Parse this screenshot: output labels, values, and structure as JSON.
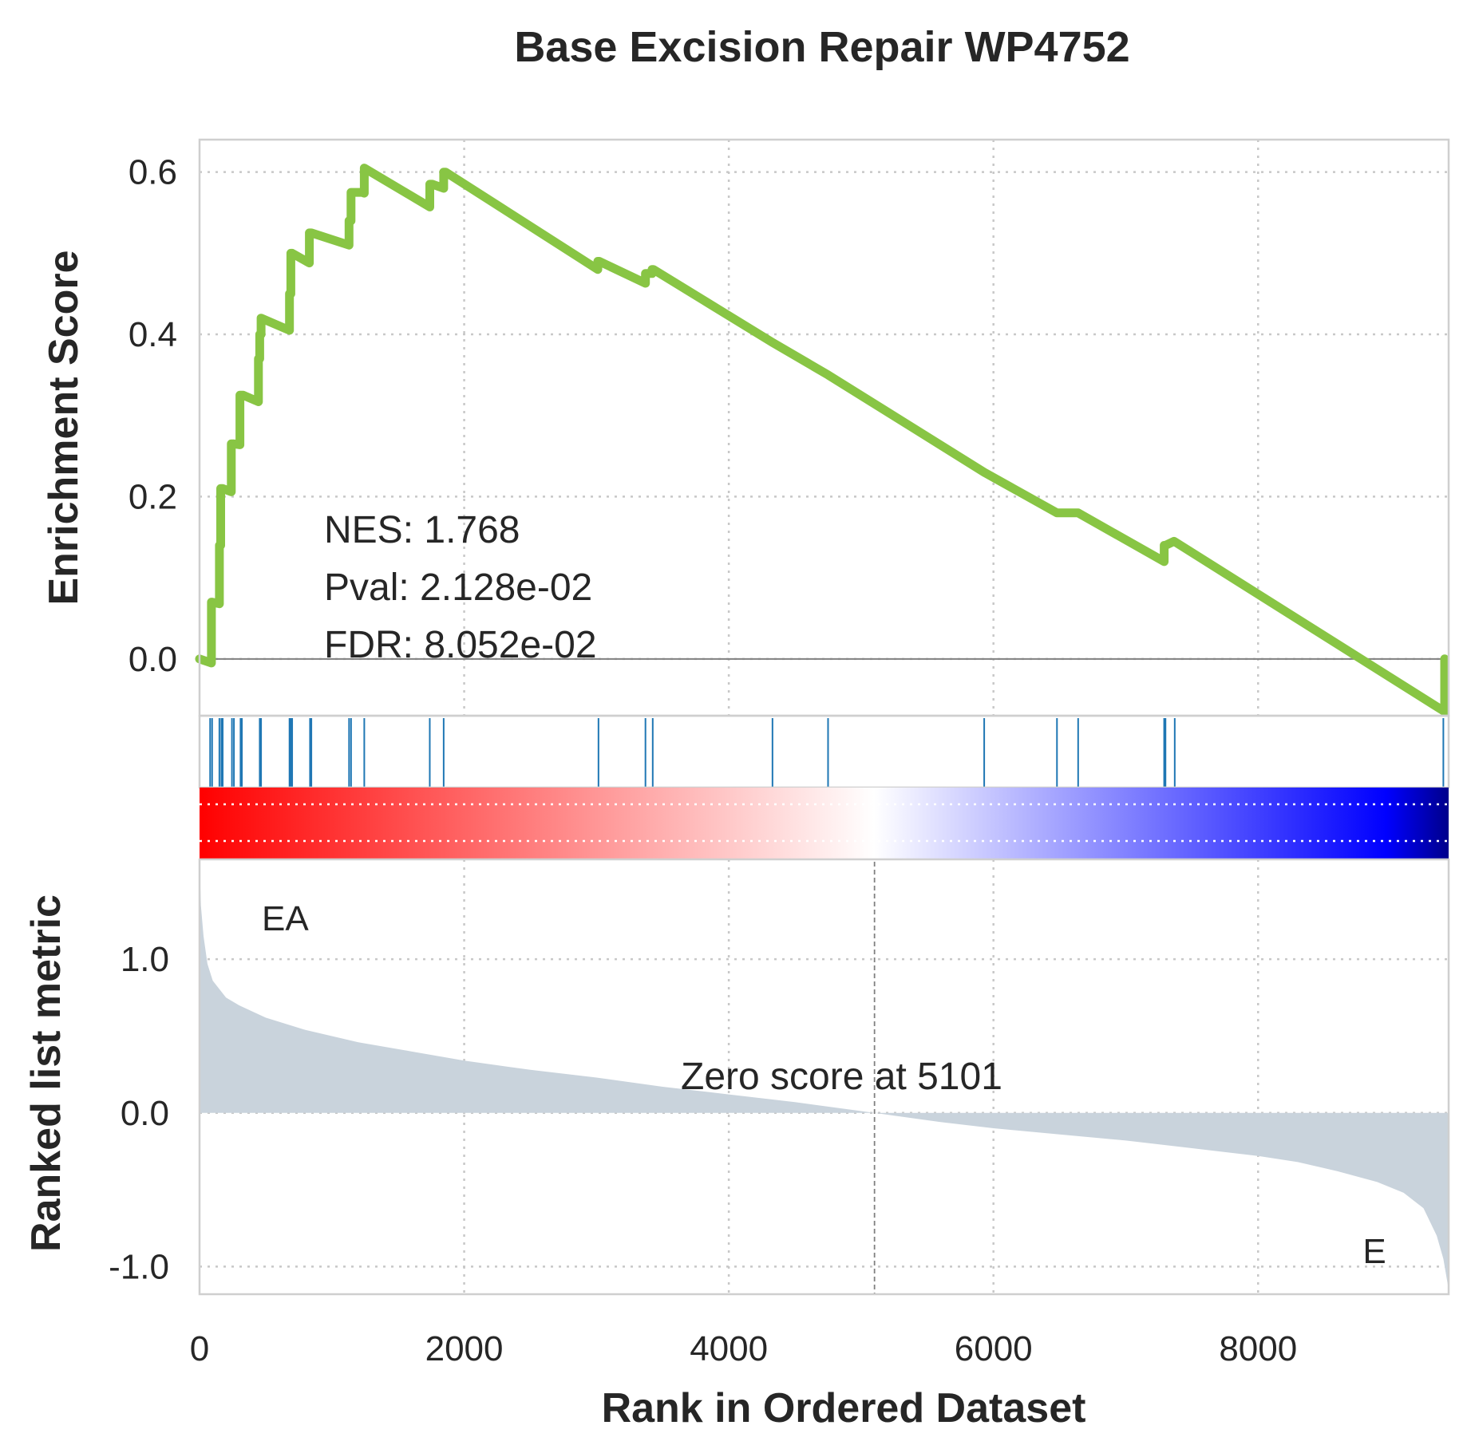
{
  "chart_data": {
    "type": "line",
    "title": "Base Excision Repair WP4752",
    "xlabel": "Rank in Ordered Dataset",
    "xlim": [
      0,
      9440
    ],
    "x_ticks": [
      "0",
      "2000",
      "4000",
      "6000",
      "8000"
    ],
    "x_tick_values": [
      0,
      2000,
      4000,
      6000,
      8000
    ],
    "grid": true,
    "colors": {
      "es_line": "#88c544",
      "hit_lines": "#1f77b4",
      "metric_fill": "#c9d3dc",
      "zero_line": "#808080",
      "heat_high": "#ff0000",
      "heat_mid": "#ffffff",
      "heat_low": "#0000ff",
      "heat_end": "#00008b"
    },
    "enrichment_panel": {
      "ylabel": "Enrichment Score",
      "ylim": [
        -0.07,
        0.64
      ],
      "y_ticks": [
        "0.0",
        "0.2",
        "0.4",
        "0.6"
      ],
      "y_tick_values": [
        0.0,
        0.2,
        0.4,
        0.6
      ],
      "stats": {
        "nes": "NES: 1.768",
        "pval": "Pval: 2.128e-02",
        "fdr": "FDR: 8.052e-02"
      },
      "series": [
        {
          "x": [
            0,
            90,
            90,
            95,
            95,
            150,
            150,
            160,
            160,
            175,
            175,
            240,
            240,
            260,
            260,
            305,
            305,
            330,
            330,
            445,
            445,
            455,
            455,
            465,
            465,
            680,
            680,
            690,
            690,
            700,
            700,
            830,
            830,
            845,
            845,
            1130,
            1130,
            1145,
            1145,
            1230,
            1230,
            1245,
            1245,
            1740,
            1740,
            1760,
            1760,
            1845,
            1845,
            1860,
            1860,
            3010,
            3010,
            3020,
            3020,
            3370,
            3370,
            3380,
            3380,
            3420,
            3420,
            3430,
            3430,
            4330,
            4330,
            4750,
            4750,
            5930,
            5930,
            6480,
            6480,
            6640,
            6640,
            7290,
            7290,
            7300,
            7300,
            7365,
            7365,
            9410,
            9410
          ],
          "y": [
            0.0,
            -0.005,
            0.07,
            0.07,
            0.07,
            0.068,
            0.14,
            0.14,
            0.21,
            0.21,
            0.21,
            0.206,
            0.265,
            0.265,
            0.265,
            0.264,
            0.325,
            0.325,
            0.325,
            0.317,
            0.37,
            0.37,
            0.4,
            0.4,
            0.42,
            0.405,
            0.45,
            0.45,
            0.5,
            0.5,
            0.5,
            0.488,
            0.525,
            0.525,
            0.525,
            0.51,
            0.54,
            0.54,
            0.575,
            0.575,
            0.575,
            0.574,
            0.605,
            0.557,
            0.585,
            0.585,
            0.585,
            0.58,
            0.6,
            0.6,
            0.6,
            0.48,
            0.49,
            0.49,
            0.49,
            0.463,
            0.475,
            0.475,
            0.475,
            0.475,
            0.48,
            0.48,
            0.48,
            0.39,
            0.39,
            0.35,
            0.35,
            0.23,
            0.23,
            0.18,
            0.18,
            0.18,
            0.18,
            0.12,
            0.14,
            0.14,
            0.14,
            0.145,
            0.145,
            -0.065,
            0.0
          ]
        }
      ]
    },
    "hits_panel": {
      "hit_ranks": [
        80,
        95,
        150,
        165,
        175,
        245,
        260,
        310,
        320,
        455,
        465,
        680,
        690,
        700,
        835,
        845,
        1130,
        1145,
        1245,
        1740,
        1845,
        3015,
        3370,
        3425,
        4330,
        4750,
        5930,
        6480,
        6640,
        7290,
        7300,
        7370,
        9400
      ]
    },
    "metric_panel": {
      "ylabel": "Ranked list metric",
      "ylim": [
        -1.18,
        1.65
      ],
      "y_ticks": [
        "-1.0",
        "0.0",
        "1.0"
      ],
      "y_tick_values": [
        -1.0,
        0.0,
        1.0
      ],
      "zero_cross": 5101,
      "zero_label": "Zero score at 5101",
      "pos_label": "EA",
      "neg_label": "E",
      "series": [
        {
          "x": [
            0,
            10,
            30,
            60,
            100,
            200,
            300,
            500,
            800,
            1200,
            1600,
            2000,
            2500,
            3000,
            3500,
            4000,
            4500,
            5101,
            5600,
            6000,
            6500,
            7000,
            7500,
            8000,
            8300,
            8600,
            8900,
            9100,
            9250,
            9350,
            9400,
            9440
          ],
          "values": [
            1.65,
            1.35,
            1.15,
            0.97,
            0.86,
            0.75,
            0.7,
            0.62,
            0.54,
            0.46,
            0.4,
            0.34,
            0.28,
            0.23,
            0.17,
            0.12,
            0.07,
            0.0,
            -0.06,
            -0.1,
            -0.14,
            -0.18,
            -0.23,
            -0.28,
            -0.32,
            -0.38,
            -0.45,
            -0.52,
            -0.62,
            -0.8,
            -0.95,
            -1.15
          ]
        }
      ]
    }
  }
}
